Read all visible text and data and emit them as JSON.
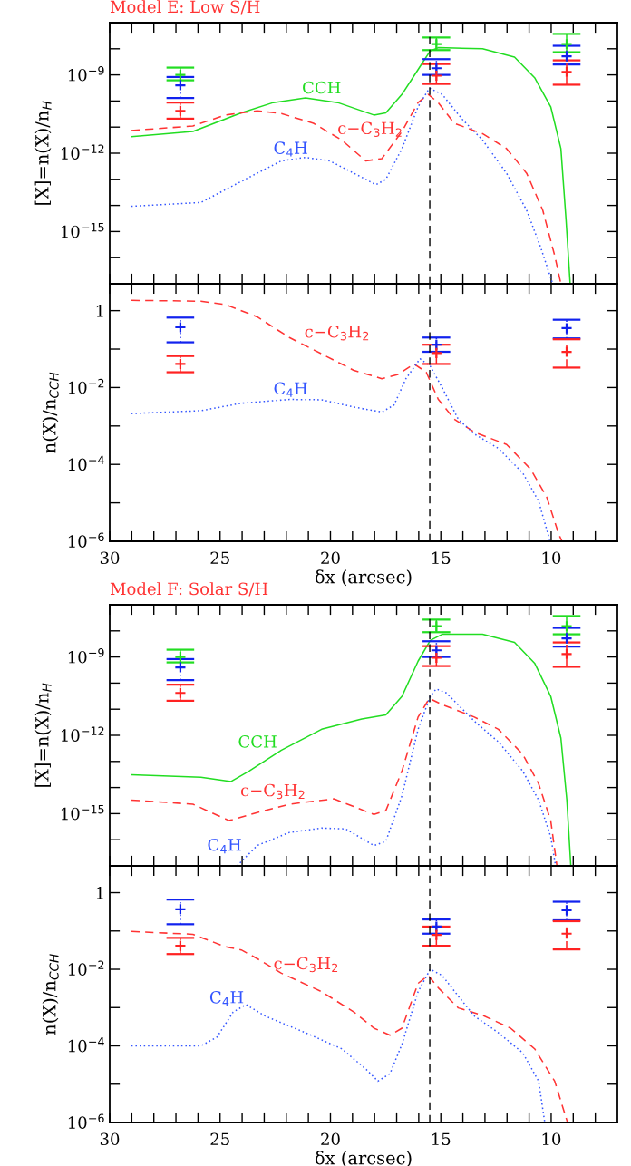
{
  "chart_data": [
    {
      "type": "line",
      "title": "Model E: Low S/H",
      "ylabel": "[X]=n(X)/n$_{H}$",
      "log": "y",
      "tick_labels": "y",
      "xlim": [
        30,
        7
      ],
      "xticks": [
        30,
        {
          "value": 29,
          "label": null
        },
        {
          "value": 28,
          "label": null
        },
        {
          "value": 27,
          "label": null
        },
        {
          "value": 26,
          "label": null
        },
        25,
        {
          "value": 24,
          "label": null
        },
        {
          "value": 23,
          "label": null
        },
        {
          "value": 22,
          "label": null
        },
        {
          "value": 21,
          "label": null
        },
        20,
        {
          "value": 19,
          "label": null
        },
        {
          "value": 18,
          "label": null
        },
        {
          "value": 17,
          "label": null
        },
        {
          "value": 16,
          "label": null
        },
        15,
        {
          "value": 14,
          "label": null
        },
        {
          "value": 13,
          "label": null
        },
        {
          "value": 12,
          "label": null
        },
        {
          "value": 11,
          "label": null
        },
        10,
        {
          "value": 9,
          "label": null
        },
        {
          "value": 8,
          "label": null
        }
      ],
      "ylim": [
        1e-17,
        1e-07
      ],
      "yticks": [
        {
          "value": 1e-17,
          "label": null
        },
        {
          "value": 1e-16,
          "label": null
        },
        {
          "value": 1e-15,
          "label": "10$^{−15}$"
        },
        {
          "value": 1e-14,
          "label": null
        },
        {
          "value": 1e-13,
          "label": null
        },
        {
          "value": 1e-12,
          "label": "10$^{−12}$"
        },
        {
          "value": 1e-11,
          "label": null
        },
        {
          "value": 1e-10,
          "label": null
        },
        {
          "value": 1e-09,
          "label": "10$^{−9}$"
        },
        {
          "value": 1e-08,
          "label": null
        },
        {
          "value": 1e-07,
          "label": null
        }
      ],
      "series": [
        {
          "name": "CCH",
          "color": "#22dd22",
          "line_style": "solid",
          "x": [
            29.02,
            26.23,
            24.04,
            22.59,
            21.13,
            19.67,
            18.03,
            17.49,
            16.76,
            16.03,
            15.48,
            15.12,
            13.11,
            11.66,
            10.75,
            10.02,
            9.56,
            9.33,
            9.14
          ],
          "values": [
            4.3e-12,
            6.8e-12,
            3.5e-11,
            8.7e-11,
            1.3e-10,
            8.7e-11,
            2.9e-11,
            3.5e-11,
            1.8e-10,
            1.6e-09,
            8.3e-09,
            1.1e-08,
            1e-08,
            4.8e-09,
            7.8e-10,
            6e-11,
            1.5e-12,
            3.1e-15,
            1e-17
          ]
        },
        {
          "name": "c−C$_{3}$H$_{2}$",
          "color": "#ff3333",
          "line_style": "dashed",
          "x": [
            29.02,
            26.23,
            24.77,
            23.32,
            22.22,
            20.77,
            19.49,
            18.4,
            17.67,
            16.76,
            16.03,
            15.57,
            15.12,
            14.39,
            13.11,
            12.02,
            11.11,
            10.38,
            9.83,
            9.56
          ],
          "values": [
            7.4e-12,
            1.1e-11,
            2.9e-11,
            4.2e-11,
            3.3e-11,
            1.4e-11,
            3.2e-12,
            5.1e-13,
            6.2e-13,
            6.8e-12,
            8.7e-11,
            1.8e-10,
            8.7e-11,
            1.4e-11,
            5.6e-12,
            1.5e-12,
            1.7e-13,
            6.5e-15,
            1.1e-16,
            1e-17
          ]
        },
        {
          "name": "C$_{4}$H",
          "color": "#3355ff",
          "line_style": "dotted",
          "x": [
            29.02,
            25.87,
            23.68,
            22.22,
            21.13,
            20.04,
            18.58,
            17.94,
            17.49,
            16.76,
            16.03,
            15.52,
            14.94,
            14.03,
            13.11,
            12.02,
            11.11,
            10.47,
            9.93
          ],
          "values": [
            9.3e-15,
            1.3e-14,
            1.2e-13,
            5.1e-13,
            6.9e-13,
            5.1e-13,
            1.2e-13,
            6.2e-14,
            1e-13,
            1.5e-12,
            6e-11,
            3.1e-10,
            1.8e-10,
            2e-11,
            3.2e-12,
            1.7e-13,
            6.5e-15,
            2.4e-16,
            1e-17
          ]
        },
        {
          "type": "scatter",
          "marker": "cross",
          "color": "#22dd22",
          "line_style": "solid",
          "x": [
            26.8,
            15.2,
            9.3
          ],
          "values": [
            1e-09,
            1.5e-08,
            1.5e-08
          ],
          "errors": [
            [
              6.2e-10,
              1.9e-09
            ],
            [
              8.9e-09,
              2.7e-08
            ],
            [
              7.4e-09,
              3.7e-08
            ]
          ]
        },
        {
          "type": "scatter",
          "marker": "cross",
          "color": "#1122ee",
          "line_style": "dotted",
          "x": [
            26.8,
            15.2,
            9.3
          ],
          "values": [
            4e-10,
            1.8e-09,
            5.1e-09
          ],
          "errors": [
            [
              1.3e-10,
              8.3e-10
            ],
            [
              1e-09,
              4e-09
            ],
            [
              2.5e-09,
              1.3e-08
            ]
          ]
        },
        {
          "type": "scatter",
          "marker": "cross",
          "color": "#ff2222",
          "line_style": "dashed",
          "x": [
            26.8,
            15.2,
            9.3
          ],
          "values": [
            4.2e-11,
            9.3e-10,
            1.3e-09
          ],
          "errors": [
            [
              2.1e-11,
              8.7e-11
            ],
            [
              4.5e-10,
              2.6e-09
            ],
            [
              4.2e-10,
              3.6e-09
            ]
          ]
        }
      ],
      "ref_lines": [
        {
          "axis": "x",
          "value": 15.5,
          "color": "#000000",
          "line_style": "dashed"
        }
      ]
    },
    {
      "type": "line",
      "xlabel": "δx (arcsec)",
      "ylabel": "n(X)/n$_{CCH}$",
      "log": "y",
      "xlim": [
        30,
        7
      ],
      "xticks": [
        30,
        {
          "value": 29,
          "label": null
        },
        {
          "value": 28,
          "label": null
        },
        {
          "value": 27,
          "label": null
        },
        {
          "value": 26,
          "label": null
        },
        25,
        {
          "value": 24,
          "label": null
        },
        {
          "value": 23,
          "label": null
        },
        {
          "value": 22,
          "label": null
        },
        {
          "value": 21,
          "label": null
        },
        20,
        {
          "value": 19,
          "label": null
        },
        {
          "value": 18,
          "label": null
        },
        {
          "value": 17,
          "label": null
        },
        {
          "value": 16,
          "label": null
        },
        15,
        {
          "value": 14,
          "label": null
        },
        {
          "value": 13,
          "label": null
        },
        {
          "value": 12,
          "label": null
        },
        {
          "value": 11,
          "label": null
        },
        10,
        {
          "value": 9,
          "label": null
        },
        {
          "value": 8,
          "label": null
        }
      ],
      "ylim": [
        1e-06,
        5
      ],
      "yticks": [
        {
          "value": 1e-06,
          "label": "10$^{−6}$"
        },
        {
          "value": 1e-05,
          "label": null
        },
        {
          "value": 0.0001,
          "label": "10$^{−4}$"
        },
        {
          "value": 0.001,
          "label": null
        },
        {
          "value": 0.01,
          "label": "10$^{−2}$"
        },
        {
          "value": 0.1,
          "label": null
        },
        1
      ],
      "series": [
        {
          "name": "c−C$_{3}$H$_{2}$",
          "color": "#ff3333",
          "line_style": "dashed",
          "x": [
            29.02,
            25.87,
            24.77,
            23.32,
            21.86,
            20.4,
            18.94,
            17.67,
            16.94,
            16.21,
            15.66,
            15.12,
            14.39,
            13.48,
            12.02,
            10.93,
            10.2,
            9.65,
            9.51
          ],
          "values": [
            1.85,
            1.76,
            1.45,
            0.69,
            0.2,
            0.075,
            0.028,
            0.017,
            0.022,
            0.041,
            0.025,
            0.005,
            0.0015,
            0.00069,
            0.00033,
            7.5e-05,
            1.4e-05,
            1.5e-06,
            1e-06
          ]
        },
        {
          "name": "C$_{4}$H",
          "color": "#3355ff",
          "line_style": "dotted",
          "x": [
            29.02,
            25.87,
            24.04,
            21.86,
            20.4,
            18.94,
            17.67,
            17.12,
            16.58,
            15.94,
            15.48,
            14.94,
            14.21,
            13.48,
            12.39,
            11.29,
            10.57,
            10.05
          ],
          "values": [
            0.0021,
            0.0025,
            0.0039,
            0.0049,
            0.0048,
            0.0031,
            0.0023,
            0.0035,
            0.017,
            0.056,
            0.036,
            0.01,
            0.0015,
            0.00062,
            0.00026,
            6e-05,
            1.1e-05,
            1e-06
          ]
        },
        {
          "type": "scatter",
          "marker": "cross",
          "color": "#1122ee",
          "line_style": "dotted",
          "x": [
            26.8,
            15.2,
            9.3
          ],
          "values": [
            0.37,
            0.13,
            0.35
          ],
          "errors": [
            [
              0.15,
              0.66
            ],
            [
              0.085,
              0.2
            ],
            [
              0.19,
              0.58
            ]
          ]
        },
        {
          "type": "scatter",
          "marker": "cross",
          "color": "#ff2222",
          "line_style": "dashed",
          "x": [
            26.8,
            15.2,
            9.3
          ],
          "values": [
            0.041,
            0.079,
            0.085
          ],
          "errors": [
            [
              0.025,
              0.066
            ],
            [
              0.041,
              0.13
            ],
            [
              0.033,
              0.18
            ]
          ]
        }
      ],
      "ref_lines": [
        {
          "axis": "x",
          "value": 15.5,
          "color": "#000000",
          "line_style": "dashed"
        }
      ]
    },
    {
      "type": "line",
      "title": "Model F: Solar S/H",
      "ylabel": "[X]=n(X)/n$_{H}$",
      "log": "y",
      "tick_labels": "y",
      "xlim": [
        30,
        7
      ],
      "xticks": [
        30,
        {
          "value": 29,
          "label": null
        },
        {
          "value": 28,
          "label": null
        },
        {
          "value": 27,
          "label": null
        },
        {
          "value": 26,
          "label": null
        },
        25,
        {
          "value": 24,
          "label": null
        },
        {
          "value": 23,
          "label": null
        },
        {
          "value": 22,
          "label": null
        },
        {
          "value": 21,
          "label": null
        },
        20,
        {
          "value": 19,
          "label": null
        },
        {
          "value": 18,
          "label": null
        },
        {
          "value": 17,
          "label": null
        },
        {
          "value": 16,
          "label": null
        },
        15,
        {
          "value": 14,
          "label": null
        },
        {
          "value": 13,
          "label": null
        },
        {
          "value": 12,
          "label": null
        },
        {
          "value": 11,
          "label": null
        },
        10,
        {
          "value": 9,
          "label": null
        },
        {
          "value": 8,
          "label": null
        }
      ],
      "ylim": [
        1e-17,
        1e-07
      ],
      "yticks": [
        {
          "value": 1e-17,
          "label": null
        },
        {
          "value": 1e-16,
          "label": null
        },
        {
          "value": 1e-15,
          "label": "10$^{−15}$"
        },
        {
          "value": 1e-14,
          "label": null
        },
        {
          "value": 1e-13,
          "label": null
        },
        {
          "value": 1e-12,
          "label": "10$^{−12}$"
        },
        {
          "value": 1e-11,
          "label": null
        },
        {
          "value": 1e-10,
          "label": null
        },
        {
          "value": 1e-09,
          "label": "10$^{−9}$"
        },
        {
          "value": 1e-08,
          "label": null
        },
        {
          "value": 1e-07,
          "label": null
        }
      ],
      "series": [
        {
          "name": "CCH",
          "color": "#22dd22",
          "line_style": "solid",
          "x": [
            29.02,
            25.87,
            24.5,
            23.68,
            22.22,
            20.4,
            18.58,
            17.49,
            16.76,
            16.03,
            15.48,
            14.94,
            13.11,
            11.66,
            10.75,
            10.02,
            9.56,
            9.29,
            9.11
          ],
          "values": [
            3.1e-14,
            2.5e-14,
            1.7e-14,
            4.3e-14,
            2.7e-13,
            1.7e-12,
            4.2e-12,
            6e-12,
            3.1e-11,
            6.9e-10,
            4.3e-09,
            7.4e-09,
            7.4e-09,
            3.6e-09,
            5.8e-10,
            3.1e-11,
            7.9e-13,
            3.3e-15,
            1e-17
          ]
        },
        {
          "name": "c−C$_{3}$H$_{2}$",
          "color": "#ff3333",
          "line_style": "dashed",
          "x": [
            29.02,
            26.23,
            24.59,
            23.32,
            21.86,
            19.85,
            18.03,
            17.49,
            16.76,
            16.03,
            15.52,
            14.94,
            13.48,
            12.39,
            11.29,
            10.57,
            10.02,
            9.74
          ],
          "values": [
            3.3e-15,
            2.3e-15,
            5.4e-16,
            1.1e-15,
            2.3e-15,
            3.7e-15,
            9.3e-16,
            1.3e-15,
            4.3e-14,
            5e-12,
            2.6e-11,
            1.5e-11,
            5e-12,
            1.7e-12,
            1.9e-13,
            1.4e-14,
            5.4e-16,
            1e-17
          ]
        },
        {
          "name": "C$_{4}$H",
          "color": "#3355ff",
          "line_style": "dotted",
          "x": [
            24.23,
            23.32,
            21.86,
            20.4,
            19.31,
            18.03,
            17.49,
            16.76,
            16.03,
            15.48,
            15.21,
            14.75,
            13.48,
            12.39,
            11.29,
            10.57,
            10.02,
            9.8
          ],
          "values": [
            1e-17,
            6e-17,
            1.9e-16,
            2.8e-16,
            2.6e-16,
            6e-17,
            8.7e-17,
            4.8e-15,
            1.7e-12,
            3.1e-11,
            6e-11,
            4.2e-11,
            3.5e-12,
            5.6e-13,
            4.3e-14,
            3.3e-15,
            1.3e-16,
            1e-17
          ]
        },
        {
          "type": "scatter",
          "marker": "cross",
          "color": "#22dd22",
          "line_style": "solid",
          "x": [
            26.8,
            15.2,
            9.3
          ],
          "values": [
            1e-09,
            1.5e-08,
            1.5e-08
          ],
          "errors": [
            [
              6.2e-10,
              1.9e-09
            ],
            [
              8.9e-09,
              2.7e-08
            ],
            [
              7.4e-09,
              3.7e-08
            ]
          ]
        },
        {
          "type": "scatter",
          "marker": "cross",
          "color": "#1122ee",
          "line_style": "dotted",
          "x": [
            26.8,
            15.2,
            9.3
          ],
          "values": [
            4e-10,
            1.8e-09,
            5.1e-09
          ],
          "errors": [
            [
              1.3e-10,
              8.3e-10
            ],
            [
              1e-09,
              4e-09
            ],
            [
              2.5e-09,
              1.3e-08
            ]
          ]
        },
        {
          "type": "scatter",
          "marker": "cross",
          "color": "#ff2222",
          "line_style": "dashed",
          "x": [
            26.8,
            15.2,
            9.3
          ],
          "values": [
            4.2e-11,
            9.3e-10,
            1.3e-09
          ],
          "errors": [
            [
              2.1e-11,
              8.7e-11
            ],
            [
              4.5e-10,
              2.6e-09
            ],
            [
              4.2e-10,
              3.6e-09
            ]
          ]
        }
      ],
      "ref_lines": [
        {
          "axis": "x",
          "value": 15.5,
          "color": "#000000",
          "line_style": "dashed"
        }
      ]
    },
    {
      "type": "line",
      "xlabel": "δx (arcsec)",
      "ylabel": "n(X)/n$_{CCH}$",
      "log": "y",
      "xlim": [
        30,
        7
      ],
      "xticks": [
        30,
        {
          "value": 29,
          "label": null
        },
        {
          "value": 28,
          "label": null
        },
        {
          "value": 27,
          "label": null
        },
        {
          "value": 26,
          "label": null
        },
        25,
        {
          "value": 24,
          "label": null
        },
        {
          "value": 23,
          "label": null
        },
        {
          "value": 22,
          "label": null
        },
        {
          "value": 21,
          "label": null
        },
        20,
        {
          "value": 19,
          "label": null
        },
        {
          "value": 18,
          "label": null
        },
        {
          "value": 17,
          "label": null
        },
        {
          "value": 16,
          "label": null
        },
        15,
        {
          "value": 14,
          "label": null
        },
        {
          "value": 13,
          "label": null
        },
        {
          "value": 12,
          "label": null
        },
        {
          "value": 11,
          "label": null
        },
        10,
        {
          "value": 9,
          "label": null
        },
        {
          "value": 8,
          "label": null
        }
      ],
      "ylim": [
        1e-06,
        5
      ],
      "yticks": [
        {
          "value": 1e-06,
          "label": "10$^{−6}$"
        },
        {
          "value": 1e-05,
          "label": null
        },
        {
          "value": 0.0001,
          "label": "10$^{−4}$"
        },
        {
          "value": 0.001,
          "label": null
        },
        {
          "value": 0.01,
          "label": "10$^{−2}$"
        },
        {
          "value": 0.1,
          "label": null
        },
        1
      ],
      "series": [
        {
          "name": "c−C$_{3}$H$_{2}$",
          "color": "#ff3333",
          "line_style": "dashed",
          "x": [
            29.02,
            26.23,
            24.77,
            24.04,
            23.32,
            22.22,
            20.4,
            18.94,
            18.03,
            17.3,
            16.76,
            16.03,
            15.57,
            15.12,
            14.21,
            13.11,
            11.84,
            10.75,
            9.84,
            9.26
          ],
          "values": [
            0.097,
            0.082,
            0.039,
            0.032,
            0.019,
            0.0079,
            0.0026,
            0.00077,
            0.00029,
            0.00019,
            0.00029,
            0.0043,
            0.0069,
            0.0033,
            0.00098,
            0.00063,
            0.00029,
            8.4e-05,
            1.2e-05,
            1e-06
          ]
        },
        {
          "name": "C$_{4}$H",
          "color": "#3355ff",
          "line_style": "dotted",
          "x": [
            29.02,
            25.87,
            25.14,
            24.41,
            23.83,
            22.95,
            21.13,
            19.49,
            18.4,
            17.85,
            17.3,
            16.76,
            16.03,
            15.48,
            14.94,
            14.21,
            13.48,
            12.39,
            11.29,
            10.57,
            10.29
          ],
          "values": [
            0.0001,
            0.0001,
            0.00017,
            0.00076,
            0.0012,
            0.0006,
            0.00022,
            8.4e-05,
            2.5e-05,
            1.2e-05,
            1.9e-05,
            0.00011,
            0.0026,
            0.01,
            0.0069,
            0.002,
            0.0006,
            0.00022,
            6.6e-05,
            1.2e-05,
            1e-06
          ]
        },
        {
          "type": "scatter",
          "marker": "cross",
          "color": "#1122ee",
          "line_style": "dotted",
          "x": [
            26.8,
            15.2,
            9.3
          ],
          "values": [
            0.37,
            0.13,
            0.35
          ],
          "errors": [
            [
              0.15,
              0.66
            ],
            [
              0.085,
              0.2
            ],
            [
              0.19,
              0.58
            ]
          ]
        },
        {
          "type": "scatter",
          "marker": "cross",
          "color": "#ff2222",
          "line_style": "dashed",
          "x": [
            26.8,
            15.2,
            9.3
          ],
          "values": [
            0.041,
            0.079,
            0.085
          ],
          "errors": [
            [
              0.025,
              0.066
            ],
            [
              0.041,
              0.13
            ],
            [
              0.033,
              0.18
            ]
          ]
        }
      ],
      "ref_lines": [
        {
          "axis": "x",
          "value": 15.5,
          "color": "#000000",
          "line_style": "dashed"
        }
      ]
    }
  ]
}
